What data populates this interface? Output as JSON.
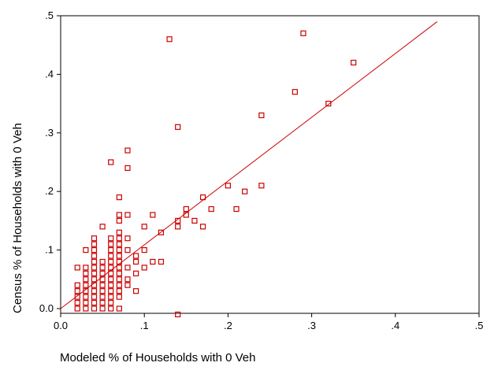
{
  "chart_data": {
    "type": "scatter",
    "title": "",
    "xlabel": "Modeled % of Households with 0 Veh",
    "ylabel": "Census % of Households with 0 Veh",
    "xlim": [
      0,
      0.5
    ],
    "ylim": [
      -0.01,
      0.5
    ],
    "x_ticks": [
      0.0,
      0.1,
      0.2,
      0.3,
      0.4,
      0.5
    ],
    "x_tick_labels": [
      "0.0",
      ".1",
      ".2",
      ".3",
      ".4",
      ".5"
    ],
    "y_ticks": [
      0.0,
      0.1,
      0.2,
      0.3,
      0.4,
      0.5
    ],
    "y_tick_labels": [
      "0.0",
      ".1",
      ".2",
      ".3",
      ".4",
      ".5"
    ],
    "grid": false,
    "legend": "none",
    "marker": "hollow-square",
    "color": "#cc0000",
    "fit_line": {
      "x": [
        0,
        0.45
      ],
      "y": [
        0,
        0.49
      ]
    },
    "points": [
      [
        0.02,
        0.0
      ],
      [
        0.03,
        0.0
      ],
      [
        0.04,
        0.0
      ],
      [
        0.05,
        0.0
      ],
      [
        0.06,
        0.0
      ],
      [
        0.07,
        0.0
      ],
      [
        0.02,
        0.01
      ],
      [
        0.03,
        0.01
      ],
      [
        0.04,
        0.01
      ],
      [
        0.05,
        0.01
      ],
      [
        0.06,
        0.01
      ],
      [
        0.02,
        0.02
      ],
      [
        0.03,
        0.02
      ],
      [
        0.04,
        0.02
      ],
      [
        0.05,
        0.02
      ],
      [
        0.06,
        0.02
      ],
      [
        0.07,
        0.02
      ],
      [
        0.02,
        0.03
      ],
      [
        0.03,
        0.03
      ],
      [
        0.04,
        0.03
      ],
      [
        0.05,
        0.03
      ],
      [
        0.06,
        0.03
      ],
      [
        0.07,
        0.03
      ],
      [
        0.09,
        0.03
      ],
      [
        0.02,
        0.04
      ],
      [
        0.03,
        0.04
      ],
      [
        0.04,
        0.04
      ],
      [
        0.05,
        0.04
      ],
      [
        0.06,
        0.04
      ],
      [
        0.07,
        0.04
      ],
      [
        0.08,
        0.04
      ],
      [
        0.03,
        0.05
      ],
      [
        0.04,
        0.05
      ],
      [
        0.05,
        0.05
      ],
      [
        0.06,
        0.05
      ],
      [
        0.07,
        0.05
      ],
      [
        0.08,
        0.05
      ],
      [
        0.03,
        0.06
      ],
      [
        0.04,
        0.06
      ],
      [
        0.05,
        0.06
      ],
      [
        0.06,
        0.06
      ],
      [
        0.07,
        0.06
      ],
      [
        0.09,
        0.06
      ],
      [
        0.02,
        0.07
      ],
      [
        0.03,
        0.07
      ],
      [
        0.04,
        0.07
      ],
      [
        0.05,
        0.07
      ],
      [
        0.06,
        0.07
      ],
      [
        0.07,
        0.07
      ],
      [
        0.08,
        0.07
      ],
      [
        0.1,
        0.07
      ],
      [
        0.04,
        0.08
      ],
      [
        0.05,
        0.08
      ],
      [
        0.06,
        0.08
      ],
      [
        0.07,
        0.08
      ],
      [
        0.09,
        0.08
      ],
      [
        0.11,
        0.08
      ],
      [
        0.12,
        0.08
      ],
      [
        0.04,
        0.09
      ],
      [
        0.06,
        0.09
      ],
      [
        0.07,
        0.09
      ],
      [
        0.09,
        0.09
      ],
      [
        0.03,
        0.1
      ],
      [
        0.04,
        0.1
      ],
      [
        0.06,
        0.1
      ],
      [
        0.07,
        0.1
      ],
      [
        0.08,
        0.1
      ],
      [
        0.1,
        0.1
      ],
      [
        0.04,
        0.11
      ],
      [
        0.06,
        0.11
      ],
      [
        0.07,
        0.11
      ],
      [
        0.04,
        0.12
      ],
      [
        0.06,
        0.12
      ],
      [
        0.07,
        0.12
      ],
      [
        0.08,
        0.12
      ],
      [
        0.07,
        0.13
      ],
      [
        0.12,
        0.13
      ],
      [
        0.05,
        0.14
      ],
      [
        0.1,
        0.14
      ],
      [
        0.14,
        0.14
      ],
      [
        0.17,
        0.14
      ],
      [
        0.07,
        0.15
      ],
      [
        0.14,
        0.15
      ],
      [
        0.16,
        0.15
      ],
      [
        0.07,
        0.16
      ],
      [
        0.08,
        0.16
      ],
      [
        0.11,
        0.16
      ],
      [
        0.15,
        0.16
      ],
      [
        0.15,
        0.17
      ],
      [
        0.18,
        0.17
      ],
      [
        0.21,
        0.17
      ],
      [
        0.07,
        0.19
      ],
      [
        0.17,
        0.19
      ],
      [
        0.22,
        0.2
      ],
      [
        0.2,
        0.21
      ],
      [
        0.24,
        0.21
      ],
      [
        0.08,
        0.24
      ],
      [
        0.06,
        0.25
      ],
      [
        0.08,
        0.27
      ],
      [
        0.14,
        0.31
      ],
      [
        0.24,
        0.33
      ],
      [
        0.32,
        0.35
      ],
      [
        0.28,
        0.37
      ],
      [
        0.35,
        0.42
      ],
      [
        0.13,
        0.46
      ],
      [
        0.29,
        0.47
      ],
      [
        0.14,
        -0.01
      ]
    ]
  }
}
